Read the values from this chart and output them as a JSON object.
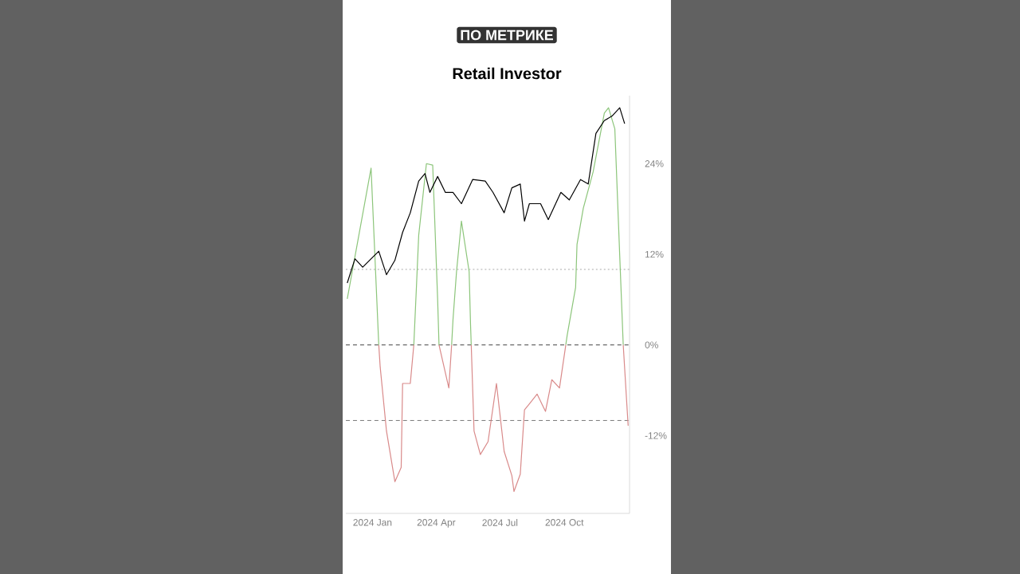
{
  "chart_data": {
    "type": "line",
    "title": "Retail Investor",
    "annotations": [
      "ПО МЕТРИКЕ"
    ],
    "xlim": [
      "2023-11-24",
      "2025-01-02"
    ],
    "xticks": [
      {
        "value": "2024-01-01",
        "label": "2024 Jan"
      },
      {
        "value": "2024-04-01",
        "label": "2024 Apr"
      },
      {
        "value": "2024-07-01",
        "label": "2024 Jul"
      },
      {
        "value": "2024-10-01",
        "label": "2024 Oct"
      }
    ],
    "ylim": [
      -22.3,
      33
    ],
    "yticks": [
      {
        "value": -12,
        "label": "-12%"
      },
      {
        "value": 0,
        "label": "0%"
      },
      {
        "value": 12,
        "label": "12%"
      },
      {
        "value": 24,
        "label": "24%"
      }
    ],
    "ref_lines": [
      {
        "axis": "y",
        "value": 10,
        "color": "#aaaaaa",
        "line_style": "dotted"
      },
      {
        "axis": "y",
        "value": 0,
        "color": "#444444",
        "line_style": "dashed"
      },
      {
        "axis": "y",
        "value": -10,
        "color": "#777777",
        "line_style": "dashed"
      }
    ],
    "series": [
      {
        "color": "#8cc57a",
        "x": [
          "2023-11-26",
          "2023-12-30",
          "2024-01-10",
          "2024-02-01",
          "2024-02-29",
          "2024-03-04",
          "2024-03-07",
          "2024-03-18",
          "2024-03-27",
          "2024-04-03",
          "2024-04-05",
          "2024-04-14",
          "2024-04-23",
          "2024-04-25",
          "2024-04-30",
          "2024-05-07",
          "2024-05-18",
          "2024-05-20",
          "2024-05-21",
          "2024-08-01",
          "2024-10-03",
          "2024-10-05",
          "2024-10-17",
          "2024-10-19",
          "2024-10-28",
          "2024-11-11",
          "2024-11-27",
          "2024-12-03",
          "2024-12-12",
          "2024-12-19",
          "2024-12-24"
        ],
        "values": [
          6.1,
          23.4,
          0,
          null,
          0,
          8.2,
          14.5,
          24.0,
          23.8,
          6.1,
          0,
          null,
          0,
          3.4,
          9.7,
          16.4,
          9.7,
          2.7,
          0,
          null,
          0,
          1.3,
          7.6,
          13.3,
          18.1,
          22.9,
          30.7,
          31.4,
          28.6,
          11.8,
          0
        ]
      },
      {
        "color": "#d98a8a",
        "x": [
          "2024-01-10",
          "2024-01-12",
          "2024-01-21",
          "2024-02-02",
          "2024-02-11",
          "2024-02-13",
          "2024-02-24",
          "2024-02-29",
          "2024-03-20",
          "2024-04-05",
          "2024-04-07",
          "2024-04-19",
          "2024-04-23",
          "2024-05-01",
          "2024-05-21",
          "2024-05-25",
          "2024-06-03",
          "2024-06-14",
          "2024-06-26",
          "2024-07-07",
          "2024-07-18",
          "2024-07-21",
          "2024-07-30",
          "2024-08-05",
          "2024-08-12",
          "2024-08-23",
          "2024-09-04",
          "2024-09-13",
          "2024-09-24",
          "2024-10-03",
          "2024-11-01",
          "2024-12-24",
          "2024-12-31"
        ],
        "values": [
          0,
          -2.9,
          -11.4,
          -18.1,
          -16.2,
          -5.1,
          -5.1,
          0,
          null,
          0,
          -0.8,
          -5.7,
          0,
          null,
          0,
          -11.4,
          -14.5,
          -12.8,
          -5.1,
          -14.1,
          -17.3,
          -19.4,
          -17.1,
          -8.6,
          -7.8,
          -6.5,
          -8.8,
          -4.6,
          -5.7,
          0,
          null,
          0,
          -10.7
        ]
      },
      {
        "color": "#000000",
        "x": [
          "2023-11-26",
          "2023-12-07",
          "2023-12-18",
          "2023-12-30",
          "2024-01-10",
          "2024-01-21",
          "2024-02-02",
          "2024-02-13",
          "2024-02-24",
          "2024-03-07",
          "2024-03-16",
          "2024-03-23",
          "2024-04-03",
          "2024-04-14",
          "2024-04-25",
          "2024-05-07",
          "2024-05-23",
          "2024-06-10",
          "2024-06-21",
          "2024-07-07",
          "2024-07-18",
          "2024-07-30",
          "2024-08-05",
          "2024-08-12",
          "2024-08-28",
          "2024-09-08",
          "2024-09-26",
          "2024-10-08",
          "2024-10-24",
          "2024-11-04",
          "2024-11-15",
          "2024-11-27",
          "2024-12-08",
          "2024-12-19",
          "2024-12-26"
        ],
        "values": [
          8.2,
          11.4,
          10.3,
          11.4,
          12.4,
          9.3,
          11.2,
          14.9,
          17.5,
          21.7,
          22.7,
          20.2,
          22.3,
          20.2,
          20.2,
          18.7,
          21.9,
          21.7,
          20.2,
          17.5,
          20.8,
          21.3,
          16.4,
          18.7,
          18.7,
          16.6,
          20.2,
          19.2,
          21.9,
          21.3,
          28.0,
          29.7,
          30.3,
          31.4,
          29.3
        ]
      }
    ]
  }
}
